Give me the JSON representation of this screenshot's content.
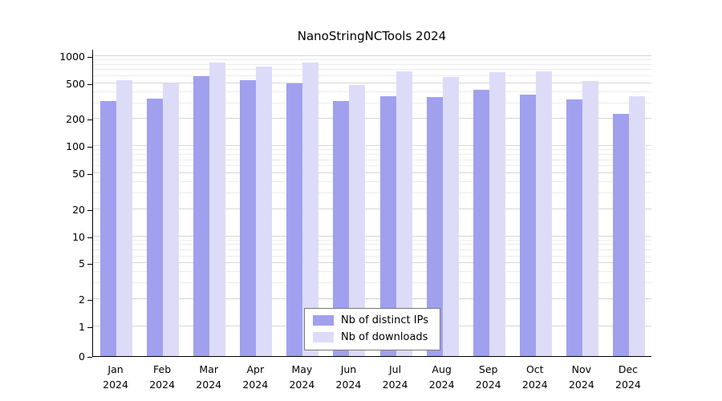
{
  "chart_data": {
    "type": "bar",
    "title": "NanoStringNCTools 2024",
    "categories": [
      "Jan",
      "Feb",
      "Mar",
      "Apr",
      "May",
      "Jun",
      "Jul",
      "Aug",
      "Sep",
      "Oct",
      "Nov",
      "Dec"
    ],
    "year_label": "2024",
    "series": [
      {
        "name": "Nb of distinct IPs",
        "color": "#a0a0ef",
        "values": [
          320,
          340,
          600,
          540,
          500,
          320,
          360,
          350,
          420,
          370,
          330,
          230
        ]
      },
      {
        "name": "Nb of downloads",
        "color": "#dcdcf9",
        "values": [
          540,
          500,
          840,
          760,
          840,
          480,
          680,
          590,
          660,
          670,
          530,
          360
        ]
      }
    ],
    "yscale": "symlog",
    "yticks": [
      0,
      1,
      2,
      5,
      10,
      20,
      50,
      100,
      200,
      500,
      1000
    ],
    "ylim": [
      0,
      1200
    ],
    "xlabel": "",
    "ylabel": "",
    "grid": true,
    "legend_position": "bottom-center"
  }
}
